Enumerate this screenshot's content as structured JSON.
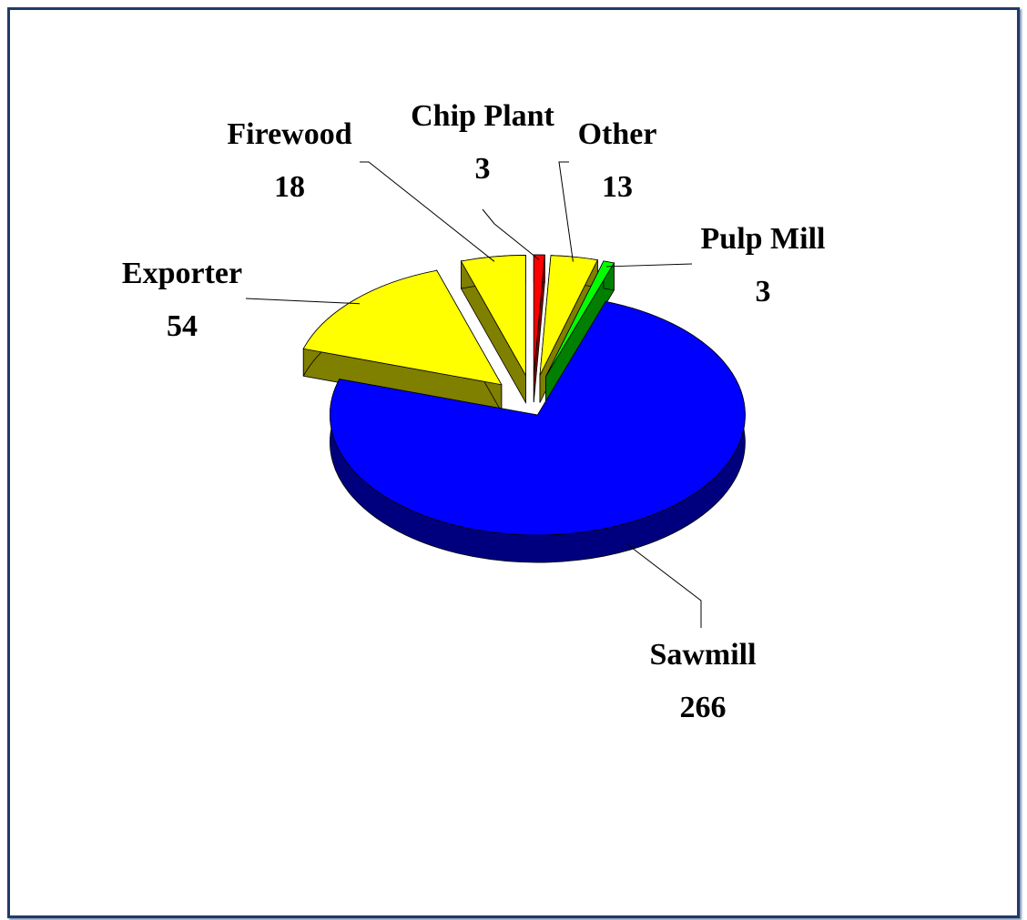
{
  "chart_data": {
    "type": "pie",
    "categories": [
      "Chip Plant",
      "Other",
      "Pulp Mill",
      "Sawmill",
      "Exporter",
      "Firewood"
    ],
    "values": [
      3,
      13,
      3,
      266,
      54,
      18
    ],
    "colors": [
      "#ff0000",
      "#ffff00",
      "#00ff00",
      "#0000ff",
      "#ffff00",
      "#ffff00"
    ],
    "three_d": true
  }
}
